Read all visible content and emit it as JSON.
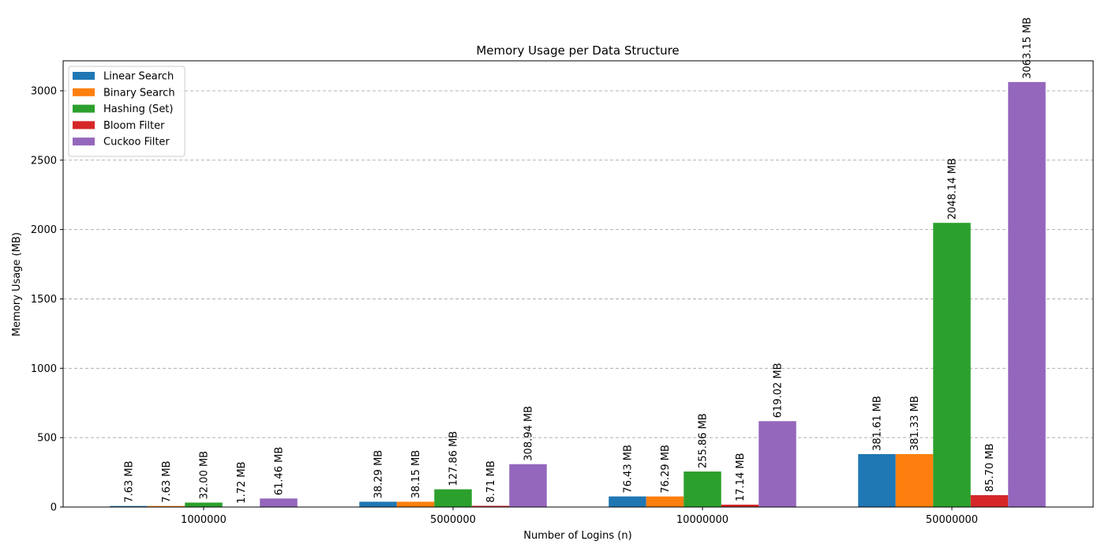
{
  "chart_data": {
    "type": "bar",
    "title": "Memory Usage per Data Structure",
    "xlabel": "Number of Logins (n)",
    "ylabel": "Memory Usage (MB)",
    "categories": [
      "1000000",
      "5000000",
      "10000000",
      "50000000"
    ],
    "ylim": [
      0,
      3216
    ],
    "yticks": [
      0,
      500,
      1000,
      1500,
      2000,
      2500,
      3000
    ],
    "grid": "y",
    "legend": "top-left",
    "value_suffix": " MB",
    "series": [
      {
        "name": "Linear Search",
        "color": "#1f77b4",
        "values": [
          7.63,
          38.29,
          76.43,
          381.61
        ],
        "labels": [
          "7.63 MB",
          "38.29 MB",
          "76.43 MB",
          "381.61 MB"
        ]
      },
      {
        "name": "Binary Search",
        "color": "#ff7f0e",
        "values": [
          7.63,
          38.15,
          76.29,
          381.33
        ],
        "labels": [
          "7.63 MB",
          "38.15 MB",
          "76.29 MB",
          "381.33 MB"
        ]
      },
      {
        "name": "Hashing (Set)",
        "color": "#2ca02c",
        "values": [
          32.0,
          127.86,
          255.86,
          2048.14
        ],
        "labels": [
          "32.00 MB",
          "127.86 MB",
          "255.86 MB",
          "2048.14 MB"
        ]
      },
      {
        "name": "Bloom Filter",
        "color": "#d62728",
        "values": [
          1.72,
          8.71,
          17.14,
          85.7
        ],
        "labels": [
          "1.72 MB",
          "8.71 MB",
          "17.14 MB",
          "85.70 MB"
        ]
      },
      {
        "name": "Cuckoo Filter",
        "color": "#9467bd",
        "values": [
          61.46,
          308.94,
          619.02,
          3063.15
        ],
        "labels": [
          "61.46 MB",
          "308.94 MB",
          "619.02 MB",
          "3063.15 MB"
        ]
      }
    ]
  }
}
